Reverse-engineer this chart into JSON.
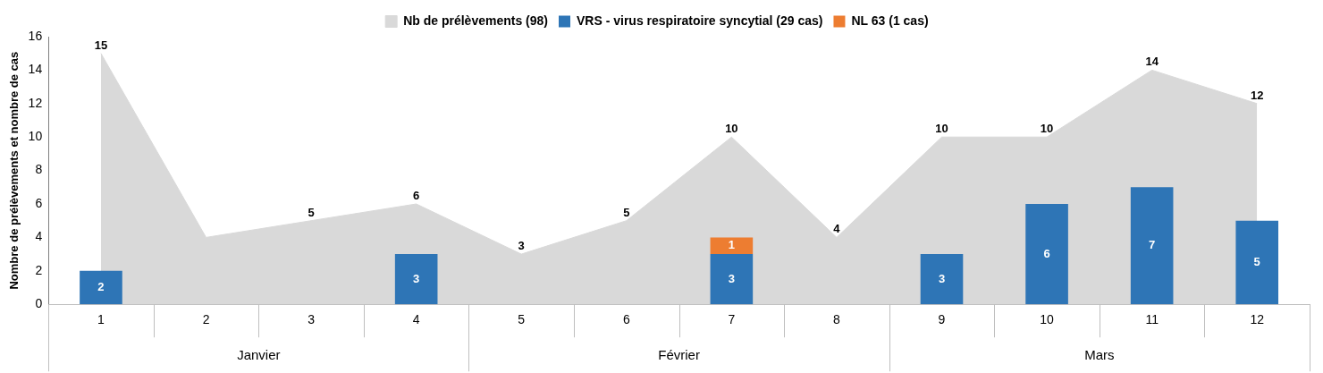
{
  "chart_data": {
    "type": "bar",
    "ylabel": "Nombre de prélèvements et nombre de cas",
    "categories": [
      "1",
      "2",
      "3",
      "4",
      "5",
      "6",
      "7",
      "8",
      "9",
      "10",
      "11",
      "12"
    ],
    "series": [
      {
        "name": "Nb de prélèvements (98)",
        "type": "area",
        "color": "#d9d9d9",
        "values": [
          15,
          4,
          5,
          6,
          3,
          5,
          10,
          4,
          10,
          10,
          14,
          12
        ],
        "value_labels": [
          "15",
          null,
          "5",
          "6",
          "3",
          "5",
          "10",
          "4",
          "10",
          "10",
          "14",
          "12"
        ]
      },
      {
        "name": "VRS - virus respiratoire syncytial (29 cas)",
        "color": "#2e75b6",
        "values": [
          2,
          0,
          0,
          3,
          0,
          0,
          3,
          0,
          3,
          6,
          7,
          5
        ],
        "value_labels": [
          "2",
          null,
          null,
          "3",
          null,
          null,
          "3",
          null,
          "3",
          "6",
          "7",
          "5"
        ]
      },
      {
        "name": "NL 63 (1 cas)",
        "color": "#ed7d31",
        "values": [
          null,
          null,
          null,
          null,
          null,
          null,
          1,
          null,
          null,
          null,
          null,
          null
        ],
        "base": [
          null,
          null,
          null,
          null,
          null,
          null,
          3,
          null,
          null,
          null,
          null,
          null
        ],
        "value_labels": [
          null,
          null,
          null,
          null,
          null,
          null,
          "1",
          null,
          null,
          null,
          null,
          null
        ]
      }
    ],
    "ylim": [
      0,
      16
    ],
    "yticks": [
      0,
      2,
      4,
      6,
      8,
      10,
      12,
      14,
      16
    ],
    "legend": "top",
    "annotations": [
      "Janvier",
      "Février",
      "Mars"
    ]
  }
}
